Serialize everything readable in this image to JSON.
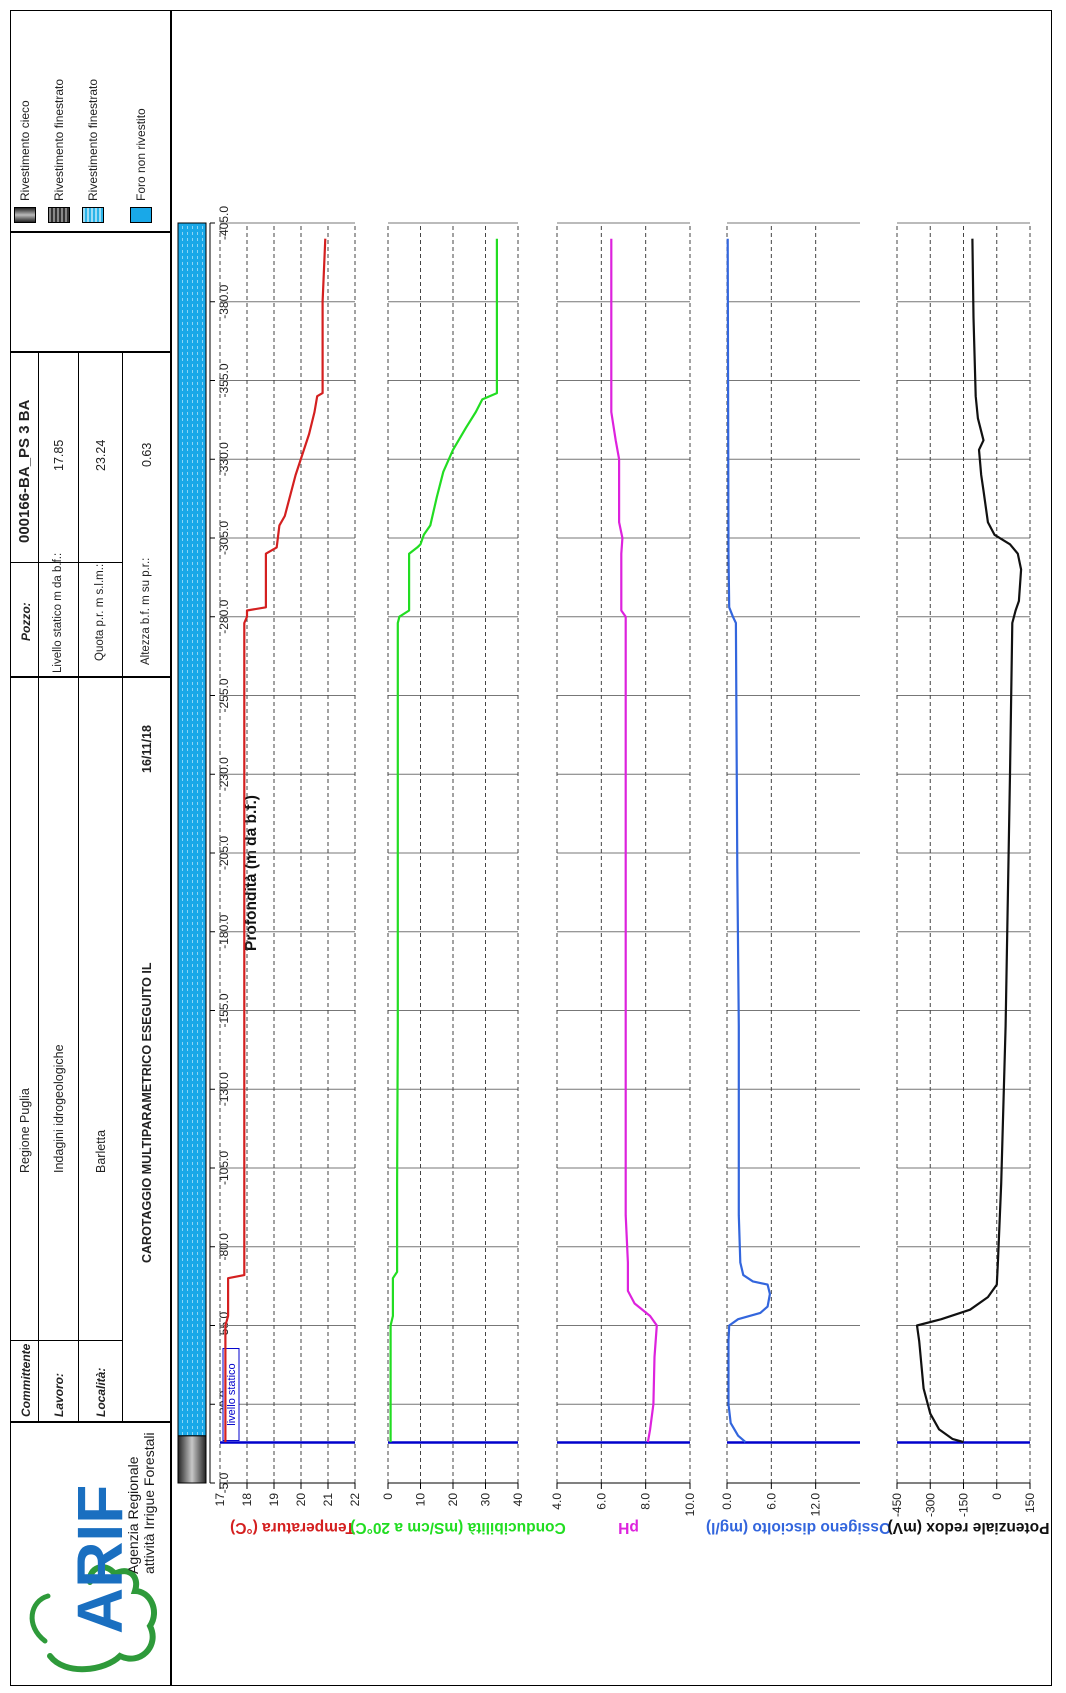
{
  "header": {
    "committente_label": "Committente",
    "committente_value": "Regione Puglia",
    "lavoro_label": "Lavoro:",
    "lavoro_value": "Indagini idrogeologiche",
    "localita_label": "Località:",
    "localita_value": "Barletta",
    "title": "CAROTAGGIO MULTIPARAMETRICO ESEGUITO IL",
    "date": "16/11/18",
    "pozzo_label": "Pozzo:",
    "pozzo_value": "000166-BA_PS 3 BA",
    "livello_label": "Livello statico m da b.f.:",
    "livello_value": "17.85",
    "quota_label": "Quota p.r. m s.l.m.:",
    "quota_value": "23.24",
    "altezza_label": "Altezza b.f. m su p.r.:",
    "altezza_value": "0.63"
  },
  "logo": {
    "text": "ARIF",
    "line1": "Agenzia Regionale",
    "line2": "attività Irrigue Forestali",
    "color": "#1a6fc0",
    "ring_color": "#2e9a3a"
  },
  "legend": [
    {
      "label": "Rivestimento cieco",
      "swatch": "cieco"
    },
    {
      "label": "Rivestimento finestrato",
      "swatch": "finestrato-dark"
    },
    {
      "label": "Rivestimento finestrato",
      "swatch": "finestrato-blue"
    },
    {
      "label": "Foro non rivestito",
      "swatch": "foro"
    }
  ],
  "chart_data": {
    "type": "line",
    "depth_axis": {
      "label": "Profondità (m da b.f.)",
      "range": [
        -5,
        -405
      ],
      "ticks": [
        "-5.0",
        "-30.0",
        "-55.0",
        "-80.0",
        "-105.0",
        "-130.0",
        "-155.0",
        "-180.0",
        "-205.0",
        "-230.0",
        "-255.0",
        "-280.0",
        "-305.0",
        "-330.0",
        "-355.0",
        "-380.0",
        "-405.0"
      ],
      "tick_values": [
        -5,
        -30,
        -55,
        -80,
        -105,
        -130,
        -155,
        -180,
        -205,
        -230,
        -255,
        -280,
        -305,
        -330,
        -355,
        -380,
        -405
      ]
    },
    "casing": [
      {
        "type": "Rivestimento cieco",
        "from": -5,
        "to": -20
      },
      {
        "type": "Rivestimento finestrato",
        "from": -20,
        "to": -405
      }
    ],
    "static_level": {
      "depth": -17.85,
      "label": "livello statico",
      "color": "#0000cc"
    },
    "tracks": [
      {
        "name": "Temperatura (°C)",
        "color": "#d42020",
        "xlim": [
          17,
          22
        ],
        "ticks": [
          "17",
          "18",
          "19",
          "20",
          "21",
          "22"
        ],
        "tick_values": [
          17,
          18,
          19,
          20,
          21,
          22
        ],
        "points": [
          [
            17.2,
            -18
          ],
          [
            17.2,
            -30
          ],
          [
            17.2,
            -55
          ],
          [
            17.3,
            -58
          ],
          [
            17.3,
            -70
          ],
          [
            17.9,
            -71
          ],
          [
            17.9,
            -100
          ],
          [
            17.9,
            -200
          ],
          [
            17.9,
            -278
          ],
          [
            18.0,
            -280
          ],
          [
            18.0,
            -282
          ],
          [
            18.7,
            -283
          ],
          [
            18.7,
            -300
          ],
          [
            19.1,
            -302
          ],
          [
            19.2,
            -309
          ],
          [
            19.4,
            -312
          ],
          [
            19.8,
            -325
          ],
          [
            20.3,
            -338
          ],
          [
            20.5,
            -345
          ],
          [
            20.6,
            -350
          ],
          [
            20.8,
            -351
          ],
          [
            20.8,
            -380
          ],
          [
            20.9,
            -400
          ]
        ]
      },
      {
        "name": "Conducibilità (mS/cm a 20°C)",
        "color": "#22dd22",
        "xlim": [
          0,
          40
        ],
        "ticks": [
          "0",
          "10",
          "20",
          "30",
          "40"
        ],
        "tick_values": [
          0,
          10,
          20,
          30,
          40
        ],
        "points": [
          [
            0.8,
            -18
          ],
          [
            0.8,
            -55
          ],
          [
            1.5,
            -58
          ],
          [
            1.5,
            -70
          ],
          [
            2.8,
            -72
          ],
          [
            2.8,
            -100
          ],
          [
            3.0,
            -150
          ],
          [
            3.0,
            -278
          ],
          [
            3.5,
            -280
          ],
          [
            6.5,
            -282
          ],
          [
            6.5,
            -300
          ],
          [
            9,
            -302
          ],
          [
            10,
            -303
          ],
          [
            11,
            -306
          ],
          [
            13,
            -309
          ],
          [
            15,
            -318
          ],
          [
            17,
            -326
          ],
          [
            20,
            -333
          ],
          [
            24,
            -340
          ],
          [
            27,
            -345
          ],
          [
            29,
            -349
          ],
          [
            33.5,
            -351
          ],
          [
            33.5,
            -400
          ]
        ]
      },
      {
        "name": "pH",
        "color": "#dd22dd",
        "xlim": [
          4,
          10
        ],
        "ticks": [
          "4.0",
          "6.0",
          "8.0",
          "10.0"
        ],
        "tick_values": [
          4,
          6,
          8,
          10
        ],
        "points": [
          [
            8.1,
            -18
          ],
          [
            8.2,
            -22
          ],
          [
            8.35,
            -30
          ],
          [
            8.4,
            -45
          ],
          [
            8.5,
            -55
          ],
          [
            8.2,
            -58
          ],
          [
            7.5,
            -62
          ],
          [
            7.2,
            -66
          ],
          [
            7.2,
            -75
          ],
          [
            7.1,
            -90
          ],
          [
            7.1,
            -280
          ],
          [
            6.9,
            -282
          ],
          [
            6.9,
            -300
          ],
          [
            6.95,
            -305
          ],
          [
            6.8,
            -310
          ],
          [
            6.8,
            -330
          ],
          [
            6.65,
            -336
          ],
          [
            6.45,
            -345
          ],
          [
            6.45,
            -400
          ]
        ]
      },
      {
        "name": "Ossigeno disciolto (mg/l)",
        "color": "#3366dd",
        "xlim": [
          0,
          18
        ],
        "ticks": [
          "0.0",
          "6.0",
          "12.0"
        ],
        "tick_values": [
          0,
          6,
          12
        ],
        "points": [
          [
            2.5,
            -18
          ],
          [
            1.5,
            -20
          ],
          [
            0.5,
            -24
          ],
          [
            0.2,
            -30
          ],
          [
            0.2,
            -50
          ],
          [
            0.3,
            -55
          ],
          [
            1.5,
            -57
          ],
          [
            4.5,
            -59
          ],
          [
            5.5,
            -61
          ],
          [
            5.8,
            -65
          ],
          [
            5.5,
            -68
          ],
          [
            3.5,
            -69
          ],
          [
            2.2,
            -71
          ],
          [
            1.8,
            -75
          ],
          [
            1.6,
            -90
          ],
          [
            1.6,
            -150
          ],
          [
            1.4,
            -200
          ],
          [
            1.2,
            -278
          ],
          [
            0.8,
            -280
          ],
          [
            0.3,
            -283
          ],
          [
            0.2,
            -300
          ],
          [
            0.1,
            -400
          ]
        ]
      },
      {
        "name": "Potenziale redox (mV)",
        "color": "#111111",
        "xlim": [
          -450,
          150
        ],
        "ticks": [
          "-450",
          "-300",
          "-150",
          "0",
          "150"
        ],
        "tick_values": [
          -450,
          -300,
          -150,
          0,
          150
        ],
        "points": [
          [
            -150,
            -18
          ],
          [
            -200,
            -19
          ],
          [
            -260,
            -22
          ],
          [
            -300,
            -27
          ],
          [
            -330,
            -35
          ],
          [
            -350,
            -50
          ],
          [
            -360,
            -55
          ],
          [
            -250,
            -57
          ],
          [
            -120,
            -60
          ],
          [
            -40,
            -64
          ],
          [
            0,
            -68
          ],
          [
            5,
            -75
          ],
          [
            20,
            -100
          ],
          [
            40,
            -150
          ],
          [
            60,
            -230
          ],
          [
            70,
            -278
          ],
          [
            85,
            -282
          ],
          [
            100,
            -285
          ],
          [
            110,
            -295
          ],
          [
            95,
            -300
          ],
          [
            60,
            -303
          ],
          [
            -10,
            -306
          ],
          [
            -40,
            -310
          ],
          [
            -60,
            -320
          ],
          [
            -70,
            -325
          ],
          [
            -80,
            -333
          ],
          [
            -60,
            -336
          ],
          [
            -85,
            -343
          ],
          [
            -95,
            -350
          ],
          [
            -105,
            -375
          ],
          [
            -110,
            -400
          ]
        ]
      }
    ]
  }
}
